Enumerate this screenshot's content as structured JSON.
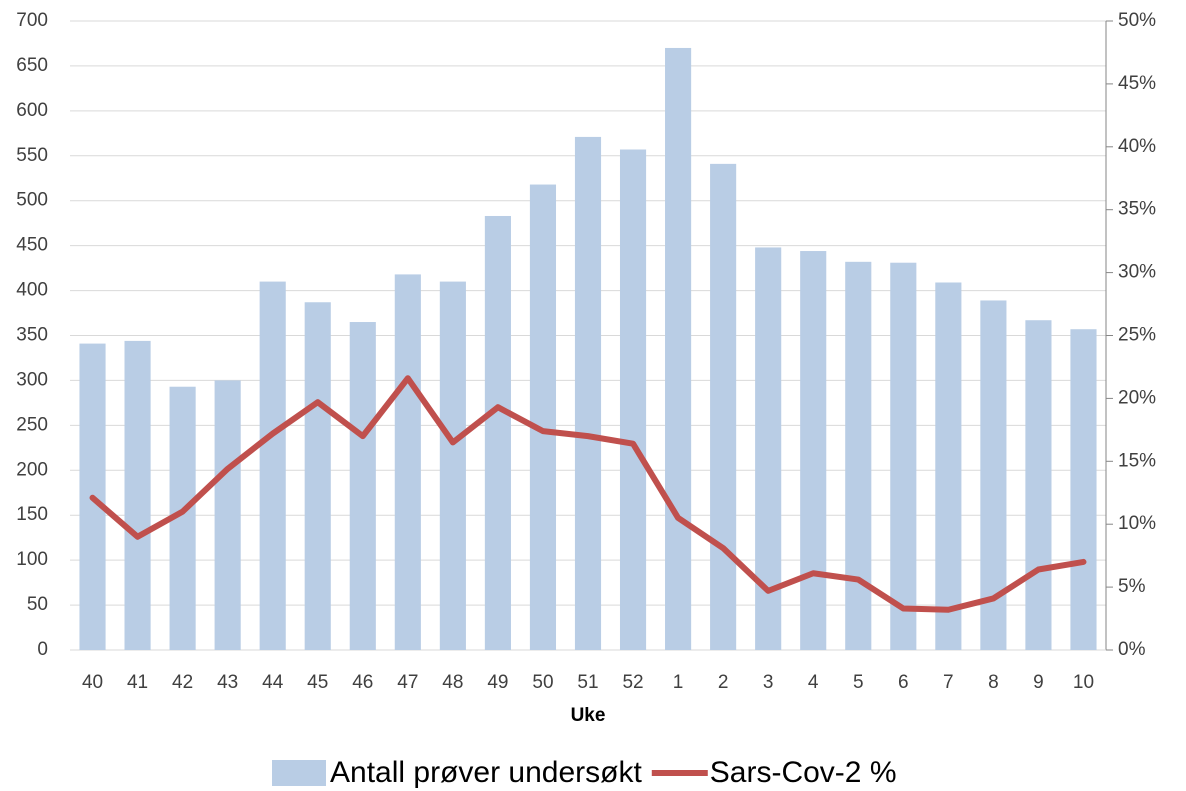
{
  "chart_data": {
    "type": "bar_line",
    "x_label": "Uke",
    "categories": [
      "40",
      "41",
      "42",
      "43",
      "44",
      "45",
      "46",
      "47",
      "48",
      "49",
      "50",
      "51",
      "52",
      "1",
      "2",
      "3",
      "4",
      "5",
      "6",
      "7",
      "8",
      "9",
      "10"
    ],
    "series": [
      {
        "name": "Antall prøver undersøkt",
        "type": "bar",
        "color": "#b9cde5",
        "values": [
          341,
          344,
          293,
          300,
          410,
          387,
          365,
          418,
          410,
          483,
          518,
          571,
          557,
          670,
          541,
          448,
          444,
          432,
          431,
          409,
          389,
          367,
          357
        ]
      },
      {
        "name": "Sars-Cov-2 %",
        "type": "line",
        "axis": "y2",
        "color": "#c0504d",
        "values": [
          12.1,
          9.0,
          11.0,
          14.4,
          17.2,
          19.7,
          17.0,
          21.6,
          16.5,
          19.3,
          17.4,
          17.0,
          16.4,
          10.5,
          8.1,
          4.7,
          6.1,
          5.6,
          3.3,
          3.2,
          4.1,
          6.4,
          7.0
        ]
      }
    ],
    "ylim": [
      0,
      700
    ],
    "yticks": [
      0,
      50,
      100,
      150,
      200,
      250,
      300,
      350,
      400,
      450,
      500,
      550,
      600,
      650,
      700
    ],
    "y2lim": [
      0,
      50
    ],
    "y2ticks": [
      {
        "value": 0,
        "label": "0%"
      },
      {
        "value": 5,
        "label": "5%"
      },
      {
        "value": 10,
        "label": "10%"
      },
      {
        "value": 15,
        "label": "15%"
      },
      {
        "value": 20,
        "label": "20%"
      },
      {
        "value": 25,
        "label": "25%"
      },
      {
        "value": 30,
        "label": "30%"
      },
      {
        "value": 35,
        "label": "35%"
      },
      {
        "value": 40,
        "label": "40%"
      },
      {
        "value": 45,
        "label": "45%"
      },
      {
        "value": 50,
        "label": "50%"
      }
    ],
    "grid": true,
    "legend": "bottom"
  }
}
